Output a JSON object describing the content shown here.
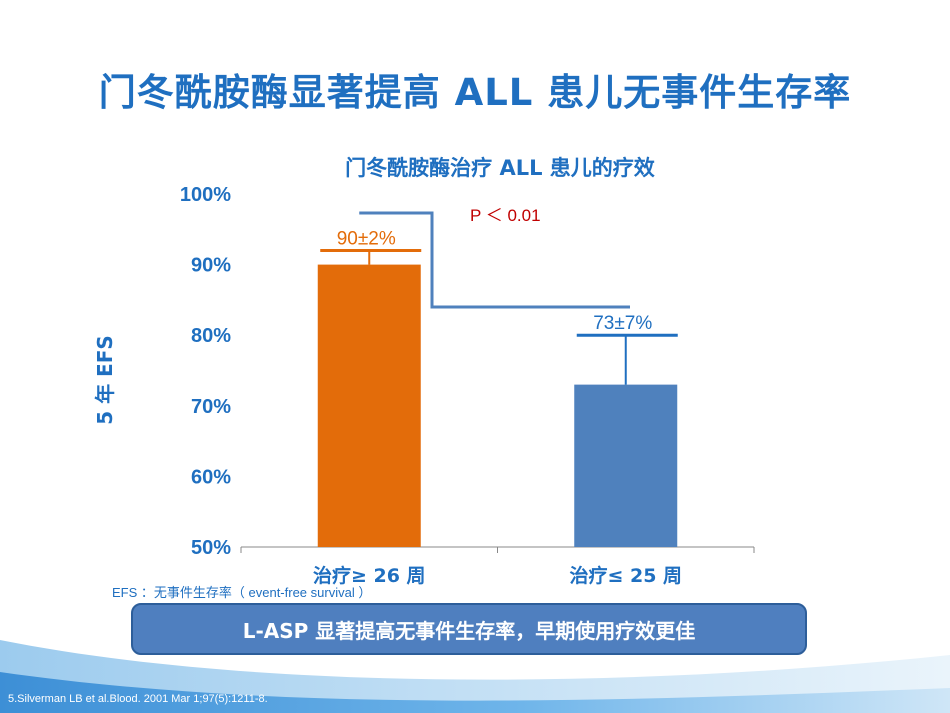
{
  "slide": {
    "title": "门冬酰胺酶显著提高 ALL 患儿无事件生存率",
    "efs_note": "EFS ：无事件生存率（ event-free  survival ）",
    "conclusion": "L-ASP 显著提高无事件生存率，早期使用疗效更佳",
    "reference": "5.Silverman LB et al.Blood. 2001 Mar 1;97(5):1211-8."
  },
  "chart_data": {
    "type": "bar",
    "title": "门冬酰胺酶治疗 ALL 患儿的疗效",
    "ylabel": "5 年 EFS",
    "xlabel": "",
    "categories": [
      "治疗≥ 26 周",
      "治疗≤ 25 周"
    ],
    "values": [
      90,
      73
    ],
    "errors": [
      2,
      7
    ],
    "data_labels": [
      "90±2%",
      "73±7%"
    ],
    "ylim": [
      50,
      100
    ],
    "yticks": [
      50,
      60,
      70,
      80,
      90,
      100
    ],
    "ytick_labels": [
      "50%",
      "60%",
      "70%",
      "80%",
      "90%",
      "100%"
    ],
    "grid": false,
    "legend": "none",
    "significance": "P ＜ 0.01",
    "colors": {
      "bar1": "#e36c0a",
      "bar2": "#4f81bd",
      "label1": "#e36c0a",
      "label2": "#1f6fc0",
      "axis_text": "#1f6fc0",
      "significance_text": "#c00000",
      "bracket": "#4f81bd",
      "error_bar_1": "#e36c0a",
      "error_bar_2": "#1f6fc0"
    }
  }
}
